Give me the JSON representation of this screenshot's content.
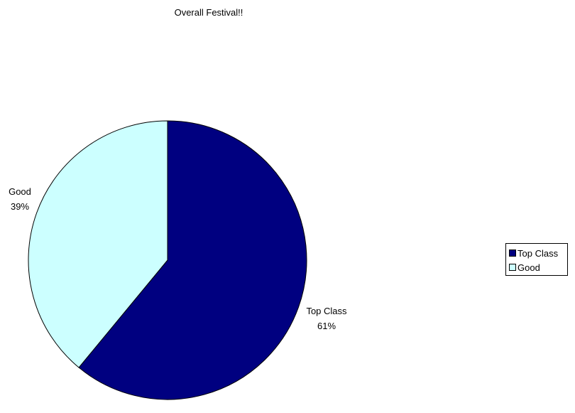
{
  "chart_data": {
    "type": "pie",
    "title": "Overall Festival!!",
    "slices": [
      {
        "name": "Top Class",
        "value": 61,
        "percent_label": "61%",
        "color": "#000080"
      },
      {
        "name": "Good",
        "value": 39,
        "percent_label": "39%",
        "color": "#ccffff"
      }
    ],
    "legend": {
      "placement": "right",
      "entries": [
        "Top Class",
        "Good"
      ]
    }
  }
}
